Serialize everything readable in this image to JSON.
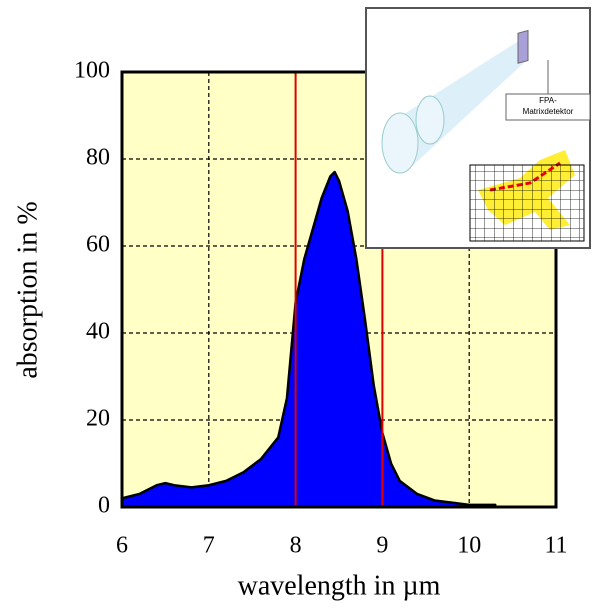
{
  "chart_data": {
    "type": "area",
    "xlabel": "wavelength in µm",
    "ylabel": "absorption in %",
    "x": [
      6.0,
      6.2,
      6.4,
      6.5,
      6.6,
      6.8,
      7.0,
      7.2,
      7.4,
      7.6,
      7.8,
      7.9,
      8.0,
      8.1,
      8.2,
      8.3,
      8.4,
      8.45,
      8.5,
      8.6,
      8.7,
      8.8,
      8.9,
      9.0,
      9.1,
      9.2,
      9.4,
      9.6,
      9.8,
      10.0,
      10.3
    ],
    "series": [
      {
        "values": [
          2,
          3,
          5,
          5.5,
          5,
          4.5,
          5,
          6,
          8,
          11,
          16,
          25,
          47,
          57,
          64,
          71,
          76,
          77,
          75,
          68,
          57,
          43,
          28,
          17,
          10,
          6,
          3,
          1.5,
          1,
          0.5,
          0.5
        ],
        "color": "#0000ff"
      }
    ],
    "xlim": [
      6,
      11
    ],
    "ylim": [
      0,
      100
    ],
    "xticks": [
      6,
      7,
      8,
      9,
      10,
      11
    ],
    "yticks": [
      0,
      20,
      40,
      60,
      80,
      100
    ],
    "grid": true,
    "background": "#ffffc6",
    "highlight_range": [
      8,
      9
    ],
    "highlight_color": "#e00000",
    "inset_label": [
      "FPA-",
      "Matrixdetektor"
    ]
  }
}
